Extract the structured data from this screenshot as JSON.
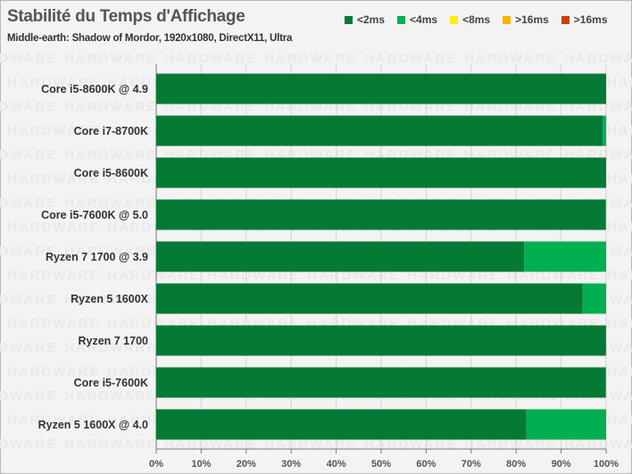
{
  "chart_data": {
    "type": "bar",
    "stacked": true,
    "orientation": "horizontal",
    "title": "Stabilité du Temps d'Affichage",
    "subtitle": "Middle-earth: Shadow of Mordor, 1920x1080, DirectX11, Ultra",
    "categories": [
      "Core i5-8600K @ 4.9",
      "Core i7-8700K",
      "Core i5-8600K",
      "Core i5-7600K @ 5.0",
      "Ryzen 7 1700 @ 3.9",
      "Ryzen 5 1600X",
      "Ryzen 7 1700",
      "Core i5-7600K",
      "Ryzen 5 1600X @ 4.0"
    ],
    "series": [
      {
        "name": "<2ms",
        "color": "#047a34",
        "values": [
          100,
          99.2,
          100,
          99.8,
          81.8,
          94.8,
          99.9,
          99.8,
          82.3
        ]
      },
      {
        "name": "<4ms",
        "color": "#00b050",
        "values": [
          0,
          0.8,
          0,
          0.2,
          18.2,
          5.2,
          0.1,
          0.2,
          17.7
        ]
      },
      {
        "name": "<8ms",
        "color": "#ffee00",
        "values": [
          0,
          0,
          0,
          0,
          0,
          0,
          0,
          0,
          0
        ]
      },
      {
        "name": ">16ms",
        "color": "#ffb000",
        "values": [
          0,
          0,
          0,
          0,
          0,
          0,
          0,
          0,
          0
        ]
      },
      {
        "name": ">16ms",
        "color": "#c8400c",
        "values": [
          0,
          0,
          0,
          0,
          0,
          0,
          0,
          0,
          0
        ]
      }
    ],
    "xlim": [
      0,
      100
    ],
    "xticks": [
      "0%",
      "10%",
      "20%",
      "30%",
      "40%",
      "50%",
      "60%",
      "70%",
      "80%",
      "90%",
      "100%"
    ],
    "legend_position": "top-right",
    "grid": true
  }
}
